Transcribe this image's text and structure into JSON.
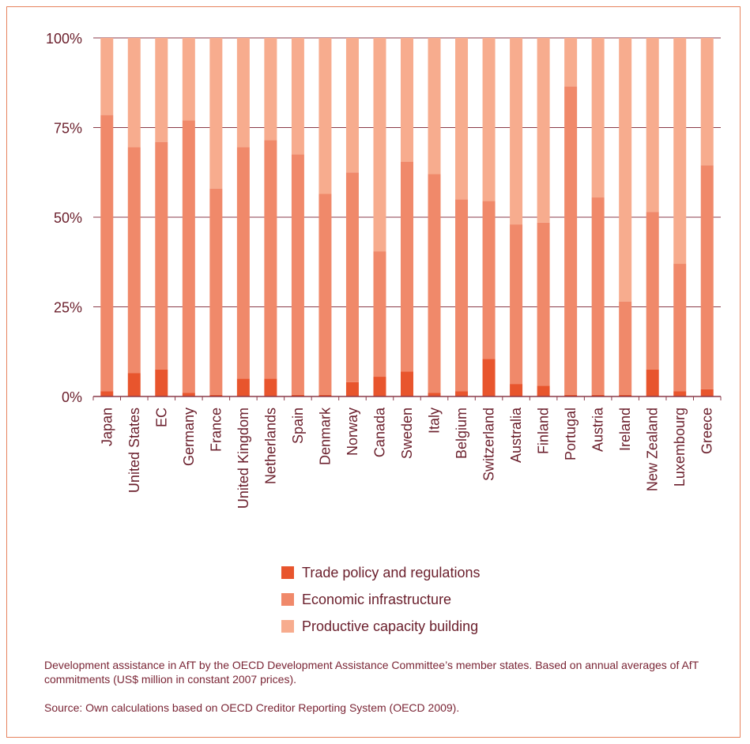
{
  "chart_data": {
    "type": "bar",
    "stacked": true,
    "normalized": true,
    "categories": [
      "Japan",
      "United States",
      "EC",
      "Germany",
      "France",
      "United Kingdom",
      "Netherlands",
      "Spain",
      "Denmark",
      "Norway",
      "Canada",
      "Sweden",
      "Italy",
      "Belgium",
      "Switzerland",
      "Australia",
      "Finland",
      "Portugal",
      "Austria",
      "Ireland",
      "New Zealand",
      "Luxembourg",
      "Greece"
    ],
    "series": [
      {
        "name": "Trade policy and regulations",
        "color": "#e8552d",
        "values": [
          1.5,
          6.5,
          7.5,
          1,
          0.5,
          5,
          5,
          0.5,
          0.5,
          4,
          5.5,
          7,
          1,
          1.5,
          10.5,
          3.5,
          3,
          0.5,
          0.5,
          0.5,
          7.5,
          1.5,
          2
        ]
      },
      {
        "name": "Economic infrastructure",
        "color": "#f0896a",
        "values": [
          77,
          63,
          63.5,
          76,
          57.5,
          64.5,
          66.5,
          67,
          56,
          58.5,
          35,
          58.5,
          61,
          53.5,
          44,
          44.5,
          45.5,
          86,
          55,
          26,
          44,
          35.5,
          62.5
        ]
      },
      {
        "name": "Productive capacity building",
        "color": "#f7ac8e",
        "values": [
          21.5,
          30.5,
          29,
          23,
          42,
          30.5,
          28.5,
          32.5,
          43.5,
          37.5,
          59.5,
          34.5,
          38,
          45,
          45.5,
          52,
          51.5,
          13.5,
          44.5,
          73.5,
          48.5,
          63,
          35.5
        ]
      }
    ],
    "yticks": [
      "0%",
      "25%",
      "50%",
      "75%",
      "100%"
    ],
    "ylim": [
      0,
      100
    ],
    "grid": true,
    "legend_position": "bottom"
  },
  "caption": "Development assistance in AfT by the OECD Development Assistance Committee’s member states. Based on annual averages of AfT commitments (US$ million in constant 2007 prices).",
  "source": "Source: Own calculations based on OECD Creditor Reporting System (OECD 2009).",
  "colors": {
    "frame": "#e7845f",
    "text": "#6a1e2b",
    "grid": "#8a3a48"
  }
}
